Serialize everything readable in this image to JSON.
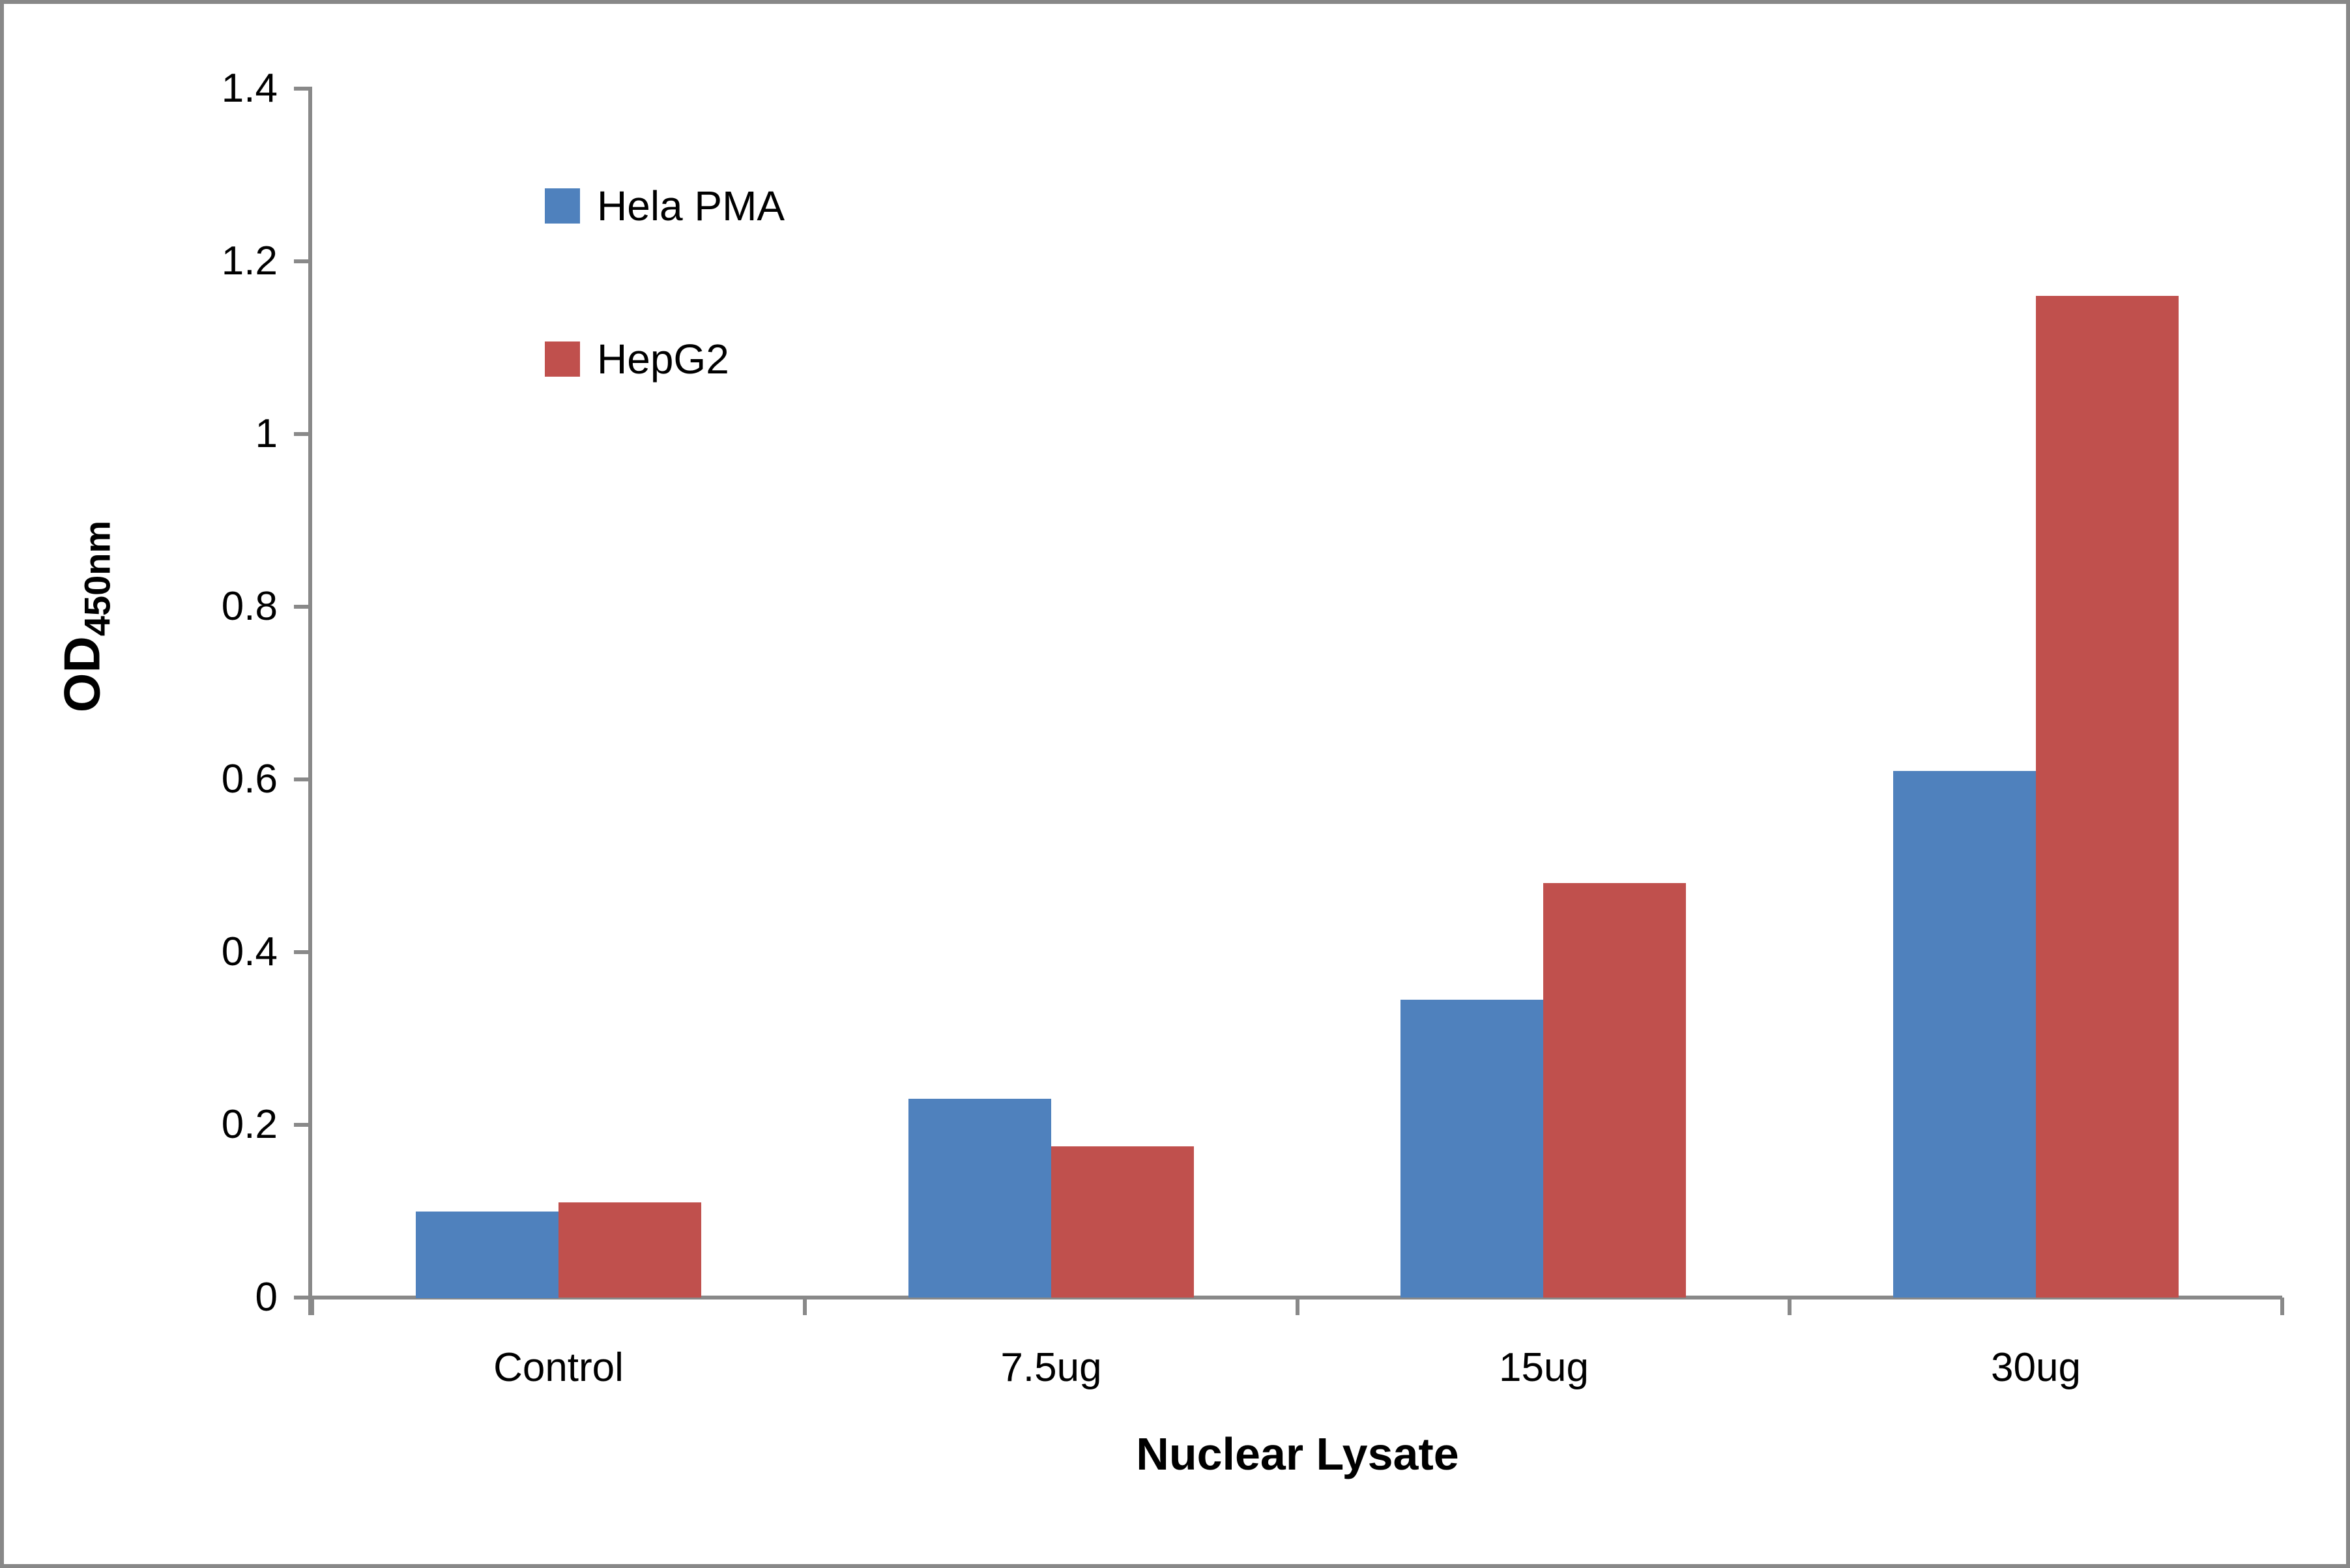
{
  "chart_data": {
    "type": "bar",
    "title": "",
    "categories": [
      "Control",
      "7.5ug",
      "15ug",
      "30ug"
    ],
    "series": [
      {
        "name": "Hela PMA",
        "color": "#4F81BD",
        "values": [
          0.1,
          0.23,
          0.345,
          0.61
        ]
      },
      {
        "name": "HepG2",
        "color": "#C0504D",
        "values": [
          0.11,
          0.175,
          0.48,
          1.16
        ]
      }
    ],
    "xlabel": "Nuclear Lysate",
    "ylabel_base": "OD",
    "ylabel_sub": "450nm",
    "ylim": [
      0,
      1.4
    ],
    "ytick_labels": [
      "0",
      "0.2",
      "0.4",
      "0.6",
      "0.8",
      "1",
      "1.2",
      "1.4"
    ],
    "grid": false,
    "legend_position": "upper-left-inside",
    "axis_color": "#898989",
    "frame_color": "#888888",
    "background": "#ffffff"
  }
}
